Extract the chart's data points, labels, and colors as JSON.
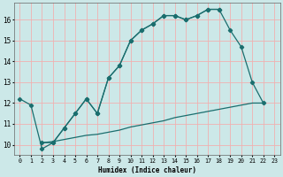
{
  "xlabel": "Humidex (Indice chaleur)",
  "bg_color": "#cce8e8",
  "grid_color": "#f0b0b0",
  "line_color": "#1a6e6e",
  "xlim": [
    -0.5,
    23.5
  ],
  "ylim": [
    9.5,
    16.8
  ],
  "xticks": [
    0,
    1,
    2,
    3,
    4,
    5,
    6,
    7,
    8,
    9,
    10,
    11,
    12,
    13,
    14,
    15,
    16,
    17,
    18,
    19,
    20,
    21,
    22,
    23
  ],
  "yticks": [
    10,
    11,
    12,
    13,
    14,
    15,
    16
  ],
  "curve1_x": [
    0,
    1,
    2,
    3,
    4,
    5,
    6,
    7,
    8,
    9,
    10,
    11,
    12,
    13,
    14,
    15,
    16,
    17,
    18
  ],
  "curve1_y": [
    12.2,
    11.9,
    9.8,
    10.1,
    10.8,
    11.5,
    12.2,
    11.5,
    13.2,
    13.8,
    15.0,
    15.5,
    15.8,
    16.2,
    16.2,
    16.0,
    16.2,
    16.5,
    16.5
  ],
  "curve2_x": [
    2,
    3,
    4,
    5,
    6,
    7,
    8,
    9,
    10,
    11,
    12,
    13,
    14,
    15,
    16,
    17,
    18,
    19,
    20,
    21,
    22
  ],
  "curve2_y": [
    10.1,
    10.1,
    10.8,
    11.5,
    12.2,
    11.5,
    13.2,
    13.8,
    15.0,
    15.5,
    15.8,
    16.2,
    16.2,
    16.0,
    16.2,
    16.5,
    16.5,
    15.5,
    14.7,
    13.0,
    12.0
  ],
  "curve3_x": [
    2,
    3,
    4,
    5,
    6,
    7,
    8,
    9,
    10,
    11,
    12,
    13,
    14,
    15,
    16,
    17,
    18,
    19,
    20,
    21,
    22
  ],
  "curve3_y": [
    10.1,
    10.15,
    10.25,
    10.35,
    10.45,
    10.5,
    10.6,
    10.7,
    10.85,
    10.95,
    11.05,
    11.15,
    11.3,
    11.4,
    11.5,
    11.6,
    11.7,
    11.8,
    11.9,
    12.0,
    12.0
  ]
}
